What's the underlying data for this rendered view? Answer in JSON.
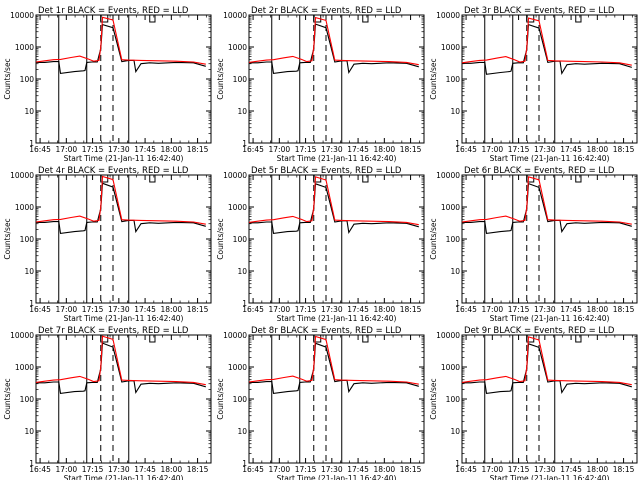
{
  "shared": {
    "xlabel": "Start Time (21-Jan-11 16:42:40)",
    "ylabel": "Counts/sec",
    "x_ticks": [
      "16:45",
      "17:00",
      "17:15",
      "17:30",
      "17:45",
      "18:00",
      "18:15"
    ],
    "y_ticks": [
      "1",
      "10",
      "100",
      "1000",
      "10000"
    ],
    "colors": {
      "events": "#000000",
      "lld": "#ff0000",
      "axis": "#000000"
    }
  },
  "chart_data": [
    {
      "type": "line",
      "title": "Det 1r  BLACK = Events, RED = LLD",
      "yscale": "log",
      "ylim": [
        1,
        10000
      ],
      "x_unit": "minutes after 16:42:40",
      "xlim": [
        0,
        100
      ],
      "series": [
        {
          "name": "Events",
          "x": [
            0,
            5,
            10,
            13,
            14,
            22,
            27,
            28,
            29,
            32,
            35,
            37,
            38,
            44,
            49,
            53,
            56,
            57,
            60,
            65,
            70,
            80,
            90,
            97
          ],
          "y": [
            330,
            330,
            350,
            350,
            150,
            170,
            180,
            185,
            330,
            340,
            340,
            900,
            5000,
            4000,
            350,
            380,
            380,
            170,
            300,
            320,
            310,
            330,
            320,
            250
          ]
        },
        {
          "name": "LLD",
          "x": [
            0,
            5,
            10,
            14,
            20,
            25,
            30,
            33,
            36,
            37,
            38,
            44,
            49,
            53,
            60,
            70,
            80,
            90,
            97
          ],
          "y": [
            340,
            370,
            400,
            410,
            470,
            520,
            420,
            360,
            380,
            1000,
            8500,
            7000,
            400,
            390,
            380,
            370,
            360,
            340,
            290
          ]
        }
      ]
    },
    {
      "type": "line",
      "title": "Det 2r  BLACK = Events, RED = LLD",
      "yscale": "log",
      "ylim": [
        1,
        10000
      ],
      "x_unit": "minutes after 16:42:40",
      "xlim": [
        0,
        100
      ],
      "series": [
        {
          "name": "Events",
          "x": [
            0,
            5,
            10,
            13,
            14,
            22,
            27,
            28,
            29,
            32,
            35,
            37,
            38,
            44,
            49,
            53,
            56,
            57,
            60,
            65,
            70,
            80,
            90,
            97
          ],
          "y": [
            320,
            320,
            340,
            340,
            150,
            170,
            175,
            180,
            320,
            330,
            330,
            900,
            5200,
            4000,
            340,
            370,
            370,
            160,
            290,
            310,
            300,
            320,
            310,
            240
          ]
        },
        {
          "name": "LLD",
          "x": [
            0,
            5,
            10,
            14,
            20,
            25,
            30,
            33,
            36,
            37,
            38,
            44,
            49,
            53,
            60,
            70,
            80,
            90,
            97
          ],
          "y": [
            330,
            360,
            390,
            400,
            460,
            510,
            410,
            350,
            370,
            1000,
            8300,
            6800,
            390,
            380,
            370,
            360,
            350,
            330,
            280
          ]
        }
      ]
    },
    {
      "type": "line",
      "title": "Det 3r  BLACK = Events, RED = LLD",
      "yscale": "log",
      "ylim": [
        1,
        10000
      ],
      "x_unit": "minutes after 16:42:40",
      "xlim": [
        0,
        100
      ],
      "series": [
        {
          "name": "Events",
          "x": [
            0,
            5,
            10,
            13,
            14,
            22,
            27,
            28,
            29,
            32,
            35,
            37,
            38,
            44,
            49,
            53,
            56,
            57,
            60,
            65,
            70,
            80,
            90,
            97
          ],
          "y": [
            310,
            310,
            330,
            330,
            140,
            160,
            170,
            175,
            310,
            320,
            320,
            850,
            5000,
            3900,
            330,
            360,
            360,
            150,
            280,
            300,
            290,
            310,
            300,
            230
          ]
        },
        {
          "name": "LLD",
          "x": [
            0,
            5,
            10,
            14,
            20,
            25,
            30,
            33,
            36,
            37,
            38,
            44,
            49,
            53,
            60,
            70,
            80,
            90,
            97
          ],
          "y": [
            320,
            350,
            380,
            390,
            450,
            500,
            400,
            340,
            360,
            950,
            8000,
            6600,
            380,
            370,
            360,
            350,
            340,
            320,
            270
          ]
        }
      ]
    },
    {
      "type": "line",
      "title": "Det 4r  BLACK = Events, RED = LLD",
      "yscale": "log",
      "ylim": [
        1,
        10000
      ],
      "x_unit": "minutes after 16:42:40",
      "xlim": [
        0,
        100
      ],
      "series": [
        {
          "name": "Events",
          "x": [
            0,
            5,
            10,
            13,
            14,
            22,
            27,
            28,
            29,
            32,
            35,
            37,
            38,
            44,
            49,
            53,
            56,
            57,
            60,
            65,
            70,
            80,
            90,
            97
          ],
          "y": [
            330,
            330,
            350,
            350,
            150,
            170,
            180,
            185,
            330,
            340,
            340,
            900,
            5500,
            4200,
            350,
            380,
            380,
            170,
            300,
            320,
            310,
            330,
            320,
            250
          ]
        },
        {
          "name": "LLD",
          "x": [
            0,
            5,
            10,
            14,
            20,
            25,
            30,
            33,
            36,
            37,
            38,
            44,
            49,
            53,
            60,
            70,
            80,
            90,
            97
          ],
          "y": [
            340,
            370,
            400,
            410,
            470,
            520,
            420,
            360,
            380,
            1000,
            9000,
            7200,
            400,
            390,
            380,
            370,
            360,
            340,
            290
          ]
        }
      ]
    },
    {
      "type": "line",
      "title": "Det 5r  BLACK = Events, RED = LLD",
      "yscale": "log",
      "ylim": [
        1,
        10000
      ],
      "x_unit": "minutes after 16:42:40",
      "xlim": [
        0,
        100
      ],
      "series": [
        {
          "name": "Events",
          "x": [
            0,
            5,
            10,
            13,
            14,
            22,
            27,
            28,
            29,
            32,
            35,
            37,
            38,
            44,
            49,
            53,
            56,
            57,
            60,
            65,
            70,
            80,
            90,
            97
          ],
          "y": [
            320,
            320,
            340,
            340,
            150,
            170,
            175,
            180,
            320,
            330,
            330,
            900,
            5300,
            4100,
            340,
            370,
            370,
            160,
            290,
            310,
            300,
            320,
            310,
            240
          ]
        },
        {
          "name": "LLD",
          "x": [
            0,
            5,
            10,
            14,
            20,
            25,
            30,
            33,
            36,
            37,
            38,
            44,
            49,
            53,
            60,
            70,
            80,
            90,
            97
          ],
          "y": [
            330,
            360,
            390,
            400,
            460,
            510,
            410,
            350,
            370,
            1000,
            8700,
            7000,
            390,
            380,
            370,
            360,
            350,
            330,
            280
          ]
        }
      ]
    },
    {
      "type": "line",
      "title": "Det 6r  BLACK = Events, RED = LLD",
      "yscale": "log",
      "ylim": [
        1,
        10000
      ],
      "x_unit": "minutes after 16:42:40",
      "xlim": [
        0,
        100
      ],
      "series": [
        {
          "name": "Events",
          "x": [
            0,
            5,
            10,
            13,
            14,
            22,
            27,
            28,
            29,
            32,
            35,
            37,
            38,
            44,
            49,
            53,
            56,
            57,
            60,
            65,
            70,
            80,
            90,
            97
          ],
          "y": [
            330,
            330,
            350,
            350,
            150,
            170,
            180,
            185,
            330,
            340,
            340,
            900,
            5400,
            4100,
            350,
            380,
            380,
            170,
            300,
            320,
            310,
            330,
            320,
            250
          ]
        },
        {
          "name": "LLD",
          "x": [
            0,
            5,
            10,
            14,
            20,
            25,
            30,
            33,
            36,
            37,
            38,
            44,
            49,
            53,
            60,
            70,
            80,
            90,
            97
          ],
          "y": [
            340,
            370,
            400,
            410,
            470,
            520,
            420,
            360,
            380,
            1000,
            8800,
            7100,
            400,
            390,
            380,
            370,
            360,
            340,
            290
          ]
        }
      ]
    },
    {
      "type": "line",
      "title": "Det 7r  BLACK = Events, RED = LLD",
      "yscale": "log",
      "ylim": [
        1,
        10000
      ],
      "x_unit": "minutes after 16:42:40",
      "xlim": [
        0,
        100
      ],
      "series": [
        {
          "name": "Events",
          "x": [
            0,
            5,
            10,
            13,
            14,
            22,
            27,
            28,
            29,
            32,
            35,
            37,
            38,
            44,
            49,
            53,
            56,
            57,
            60,
            65,
            70,
            80,
            90,
            97
          ],
          "y": [
            320,
            320,
            340,
            340,
            150,
            170,
            175,
            180,
            320,
            330,
            330,
            900,
            5600,
            4200,
            340,
            370,
            370,
            160,
            290,
            310,
            300,
            320,
            310,
            240
          ]
        },
        {
          "name": "LLD",
          "x": [
            0,
            5,
            10,
            14,
            20,
            25,
            30,
            33,
            36,
            37,
            38,
            44,
            49,
            53,
            60,
            70,
            80,
            90,
            97
          ],
          "y": [
            330,
            360,
            390,
            400,
            460,
            510,
            410,
            350,
            370,
            1000,
            9200,
            7300,
            390,
            380,
            370,
            360,
            350,
            330,
            280
          ]
        }
      ]
    },
    {
      "type": "line",
      "title": "Det 8r  BLACK = Events, RED = LLD",
      "yscale": "log",
      "ylim": [
        1,
        10000
      ],
      "x_unit": "minutes after 16:42:40",
      "xlim": [
        0,
        100
      ],
      "series": [
        {
          "name": "Events",
          "x": [
            0,
            5,
            10,
            13,
            14,
            22,
            27,
            28,
            29,
            32,
            35,
            37,
            38,
            44,
            49,
            53,
            56,
            57,
            60,
            65,
            70,
            80,
            90,
            97
          ],
          "y": [
            330,
            330,
            350,
            350,
            150,
            170,
            180,
            185,
            330,
            340,
            340,
            900,
            5500,
            4200,
            350,
            380,
            380,
            170,
            300,
            320,
            310,
            330,
            320,
            250
          ]
        },
        {
          "name": "LLD",
          "x": [
            0,
            5,
            10,
            14,
            20,
            25,
            30,
            33,
            36,
            37,
            38,
            44,
            49,
            53,
            60,
            70,
            80,
            90,
            97
          ],
          "y": [
            340,
            370,
            400,
            410,
            470,
            520,
            420,
            360,
            380,
            1000,
            9000,
            7200,
            400,
            390,
            380,
            370,
            360,
            340,
            290
          ]
        }
      ]
    },
    {
      "type": "line",
      "title": "Det 9r  BLACK = Events, RED = LLD",
      "yscale": "log",
      "ylim": [
        1,
        10000
      ],
      "x_unit": "minutes after 16:42:40",
      "xlim": [
        0,
        100
      ],
      "series": [
        {
          "name": "Events",
          "x": [
            0,
            5,
            10,
            13,
            14,
            22,
            27,
            28,
            29,
            32,
            35,
            37,
            38,
            44,
            49,
            53,
            56,
            57,
            60,
            65,
            70,
            80,
            90,
            97
          ],
          "y": [
            320,
            320,
            340,
            340,
            150,
            170,
            175,
            180,
            320,
            330,
            330,
            900,
            5300,
            4100,
            340,
            370,
            370,
            160,
            290,
            310,
            300,
            320,
            310,
            240
          ]
        },
        {
          "name": "LLD",
          "x": [
            0,
            5,
            10,
            14,
            20,
            25,
            30,
            33,
            36,
            37,
            38,
            44,
            49,
            53,
            60,
            70,
            80,
            90,
            97
          ],
          "y": [
            330,
            360,
            390,
            400,
            460,
            510,
            410,
            350,
            370,
            1000,
            8700,
            7000,
            390,
            380,
            370,
            360,
            350,
            330,
            280
          ]
        }
      ]
    }
  ],
  "markers": {
    "solid_x": [
      13,
      29,
      53
    ],
    "dashed_x": [
      37,
      44
    ],
    "bracket_x": [
      [
        37,
        41
      ],
      [
        65,
        68
      ]
    ]
  }
}
